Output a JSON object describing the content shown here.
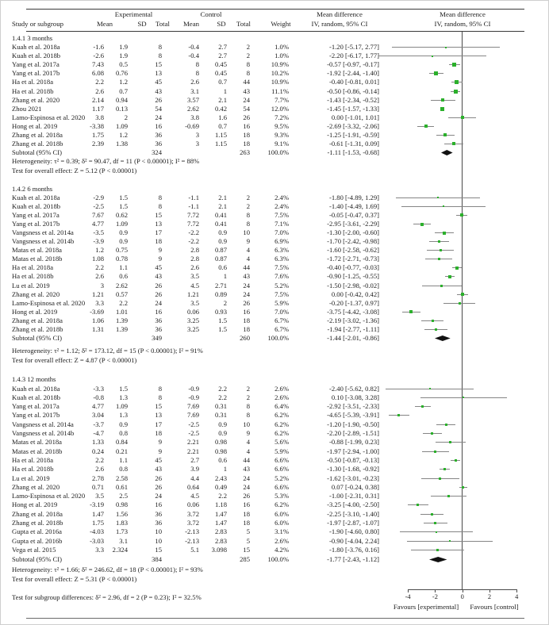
{
  "header": {
    "study_col": "Study or subgroup",
    "group_experimental": "Experimental",
    "group_control": "Control",
    "mean": "Mean",
    "sd": "SD",
    "total": "Total",
    "weight": "Weight",
    "md_col_line1": "Mean difference",
    "md_col_line2": "IV, random, 95% CI",
    "plot_col_line1": "Mean difference",
    "plot_col_line2": "IV, random, 95% CI"
  },
  "footer": {
    "subgroup_diff": "Test for subgroup differences: δ² = 2.96, df = 2 (P = 0.23); I² = 32.5%",
    "favours_left": "Favours [experimental]",
    "favours_right": "Favours [control]"
  },
  "colors": {
    "marker_green": "#2bb02b",
    "ci_line_gray": "#858585",
    "diamond_black": "#111111",
    "rule_dark": "#3a3a3a"
  },
  "chart_data": {
    "type": "forest",
    "effect_measure": "Mean difference, IV, random, 95% CI",
    "xlim": [
      -4,
      4
    ],
    "x_ticks": [
      -4,
      -2,
      0,
      2,
      4
    ],
    "favours": [
      "Favours [experimental]",
      "Favours [control]"
    ],
    "sections": [
      {
        "label": "1.4.1 3 months",
        "studies": [
          {
            "name": "Kuah et al. 2018a",
            "em": "-1.6",
            "esd": "1.9",
            "et": "8",
            "cm": "-0.4",
            "csd": "2.7",
            "ct": "2",
            "w": "1.0%",
            "md": -1.2,
            "lo": -5.17,
            "hi": 2.77
          },
          {
            "name": "Kuah et al. 2018b",
            "em": "-2.6",
            "esd": "1.9",
            "et": "8",
            "cm": "-0.4",
            "csd": "2.7",
            "ct": "2",
            "w": "1.0%",
            "md": -2.2,
            "lo": -6.17,
            "hi": 1.77
          },
          {
            "name": "Yang et al. 2017a",
            "em": "7.43",
            "esd": "0.5",
            "et": "15",
            "cm": "8",
            "csd": "0.45",
            "ct": "8",
            "w": "10.9%",
            "md": -0.57,
            "lo": -0.97,
            "hi": -0.17
          },
          {
            "name": "Yang et al. 2017b",
            "em": "6.08",
            "esd": "0.76",
            "et": "13",
            "cm": "8",
            "csd": "0.45",
            "ct": "8",
            "w": "10.2%",
            "md": -1.92,
            "lo": -2.44,
            "hi": -1.4
          },
          {
            "name": "Ha et al. 2018a",
            "em": "2.2",
            "esd": "1.2",
            "et": "45",
            "cm": "2.6",
            "csd": "0.7",
            "ct": "44",
            "w": "10.9%",
            "md": -0.4,
            "lo": -0.81,
            "hi": 0.01
          },
          {
            "name": "Ha et al. 2018b",
            "em": "2.6",
            "esd": "0.7",
            "et": "43",
            "cm": "3.1",
            "csd": "1",
            "ct": "43",
            "w": "11.1%",
            "md": -0.5,
            "lo": -0.86,
            "hi": -0.14
          },
          {
            "name": "Zhang et al. 2020",
            "em": "2.14",
            "esd": "0.94",
            "et": "26",
            "cm": "3.57",
            "csd": "2.1",
            "ct": "24",
            "w": "7.7%",
            "md": -1.43,
            "lo": -2.34,
            "hi": -0.52
          },
          {
            "name": "Zhou 2021",
            "em": "1.17",
            "esd": "0.13",
            "et": "54",
            "cm": "2.62",
            "csd": "0.42",
            "ct": "54",
            "w": "12.0%",
            "md": -1.45,
            "lo": -1.57,
            "hi": -1.33
          },
          {
            "name": "Lamo-Espinosa et al. 2020",
            "em": "3.8",
            "esd": "2",
            "et": "24",
            "cm": "3.8",
            "csd": "1.6",
            "ct": "26",
            "w": "7.2%",
            "md": 0.0,
            "lo": -1.01,
            "hi": 1.01
          },
          {
            "name": "Hong et al. 2019",
            "em": "-3.38",
            "esd": "1.09",
            "et": "16",
            "cm": "-0.69",
            "csd": "0.7",
            "ct": "16",
            "w": "9.5%",
            "md": -2.69,
            "lo": -3.32,
            "hi": -2.06
          },
          {
            "name": "Zhang et al. 2018a",
            "em": "1.75",
            "esd": "1.2",
            "et": "36",
            "cm": "3",
            "csd": "1.15",
            "ct": "18",
            "w": "9.3%",
            "md": -1.25,
            "lo": -1.91,
            "hi": -0.59
          },
          {
            "name": "Zhang et al. 2018b",
            "em": "2.39",
            "esd": "1.38",
            "et": "36",
            "cm": "3",
            "csd": "1.15",
            "ct": "18",
            "w": "9.1%",
            "md": -0.61,
            "lo": -1.31,
            "hi": 0.09
          }
        ],
        "subtotal": {
          "label": "Subtotal (95% CI)",
          "et": "324",
          "ct": "263",
          "w": "100.0%",
          "md": -1.11,
          "lo": -1.53,
          "hi": -0.68
        },
        "heterogeneity": "Heterogeneity: τ² = 0.39; δ² = 90.47, df = 11 (P < 0.00001); I² = 88%",
        "overall": "Test for overall effect: Z = 5.12 (P < 0.00001)"
      },
      {
        "label": "1.4.2 6 months",
        "studies": [
          {
            "name": "Kuah et al. 2018a",
            "em": "-2.9",
            "esd": "1.5",
            "et": "8",
            "cm": "-1.1",
            "csd": "2.1",
            "ct": "2",
            "w": "2.4%",
            "md": -1.8,
            "lo": -4.89,
            "hi": 1.29
          },
          {
            "name": "Kuah et al. 2018b",
            "em": "-2.5",
            "esd": "1.5",
            "et": "8",
            "cm": "-1.1",
            "csd": "2.1",
            "ct": "2",
            "w": "2.4%",
            "md": -1.4,
            "lo": -4.49,
            "hi": 1.69
          },
          {
            "name": "Yang et al. 2017a",
            "em": "7.67",
            "esd": "0.62",
            "et": "15",
            "cm": "7.72",
            "csd": "0.41",
            "ct": "8",
            "w": "7.5%",
            "md": -0.05,
            "lo": -0.47,
            "hi": 0.37
          },
          {
            "name": "Yang et al. 2017b",
            "em": "4.77",
            "esd": "1.09",
            "et": "13",
            "cm": "7.72",
            "csd": "0.41",
            "ct": "8",
            "w": "7.1%",
            "md": -2.95,
            "lo": -3.61,
            "hi": -2.29
          },
          {
            "name": "Vangsness et al. 2014a",
            "em": "-3.5",
            "esd": "0.9",
            "et": "17",
            "cm": "-2.2",
            "csd": "0.9",
            "ct": "10",
            "w": "7.0%",
            "md": -1.3,
            "lo": -2.0,
            "hi": -0.6
          },
          {
            "name": "Vangsness et al. 2014b",
            "em": "-3.9",
            "esd": "0.9",
            "et": "18",
            "cm": "-2.2",
            "csd": "0.9",
            "ct": "9",
            "w": "6.9%",
            "md": -1.7,
            "lo": -2.42,
            "hi": -0.98
          },
          {
            "name": "Matas et al. 2018a",
            "em": "1.2",
            "esd": "0.75",
            "et": "9",
            "cm": "2.8",
            "csd": "0.87",
            "ct": "4",
            "w": "6.3%",
            "md": -1.6,
            "lo": -2.58,
            "hi": -0.62
          },
          {
            "name": "Matas et al. 2018b",
            "em": "1.08",
            "esd": "0.78",
            "et": "9",
            "cm": "2.8",
            "csd": "0.87",
            "ct": "4",
            "w": "6.3%",
            "md": -1.72,
            "lo": -2.71,
            "hi": -0.73
          },
          {
            "name": "Ha et al. 2018a",
            "em": "2.2",
            "esd": "1.1",
            "et": "45",
            "cm": "2.6",
            "csd": "0.6",
            "ct": "44",
            "w": "7.5%",
            "md": -0.4,
            "lo": -0.77,
            "hi": -0.03
          },
          {
            "name": "Ha et al. 2018b",
            "em": "2.6",
            "esd": "0.6",
            "et": "43",
            "cm": "3.5",
            "csd": "1",
            "ct": "43",
            "w": "7.6%",
            "md": -0.9,
            "lo": -1.25,
            "hi": -0.55
          },
          {
            "name": "Lu et al. 2019",
            "em": "3",
            "esd": "2.62",
            "et": "26",
            "cm": "4.5",
            "csd": "2.71",
            "ct": "24",
            "w": "5.2%",
            "md": -1.5,
            "lo": -2.98,
            "hi": -0.02
          },
          {
            "name": "Zhang et al. 2020",
            "em": "1.21",
            "esd": "0.57",
            "et": "26",
            "cm": "1.21",
            "csd": "0.89",
            "ct": "24",
            "w": "7.5%",
            "md": 0.0,
            "lo": -0.42,
            "hi": 0.42
          },
          {
            "name": "Lamo-Espinosa et al. 2020",
            "em": "3.3",
            "esd": "2.2",
            "et": "24",
            "cm": "3.5",
            "csd": "2",
            "ct": "26",
            "w": "5.9%",
            "md": -0.2,
            "lo": -1.37,
            "hi": 0.97
          },
          {
            "name": "Hong et al. 2019",
            "em": "-3.69",
            "esd": "1.01",
            "et": "16",
            "cm": "0.06",
            "csd": "0.93",
            "ct": "16",
            "w": "7.0%",
            "md": -3.75,
            "lo": -4.42,
            "hi": -3.08
          },
          {
            "name": "Zhang et al. 2018a",
            "em": "1.06",
            "esd": "1.39",
            "et": "36",
            "cm": "3.25",
            "csd": "1.5",
            "ct": "18",
            "w": "6.7%",
            "md": -2.19,
            "lo": -3.02,
            "hi": -1.36
          },
          {
            "name": "Zhang et al. 2018b",
            "em": "1.31",
            "esd": "1.39",
            "et": "36",
            "cm": "3.25",
            "csd": "1.5",
            "ct": "18",
            "w": "6.7%",
            "md": -1.94,
            "lo": -2.77,
            "hi": -1.11
          }
        ],
        "subtotal": {
          "label": "Subtotal (95% CI)",
          "et": "349",
          "ct": "260",
          "w": "100.0%",
          "md": -1.44,
          "lo": -2.01,
          "hi": -0.86
        },
        "heterogeneity": "Heterogeneity: τ² = 1.12; δ² = 173.12, df = 15 (P < 0.00001); I² = 91%",
        "overall": "Test for overall effect: Z = 4.87 (P < 0.00001)"
      },
      {
        "label": "1.4.3 12 months",
        "studies": [
          {
            "name": "Kuah et al. 2018a",
            "em": "-3.3",
            "esd": "1.5",
            "et": "8",
            "cm": "-0.9",
            "csd": "2.2",
            "ct": "2",
            "w": "2.6%",
            "md": -2.4,
            "lo": -5.62,
            "hi": 0.82
          },
          {
            "name": "Kuah et al. 2018b",
            "em": "-0.8",
            "esd": "1.3",
            "et": "8",
            "cm": "-0.9",
            "csd": "2.2",
            "ct": "2",
            "w": "2.6%",
            "md": 0.1,
            "lo": -3.08,
            "hi": 3.28
          },
          {
            "name": "Yang et al. 2017a",
            "em": "4.77",
            "esd": "1.09",
            "et": "15",
            "cm": "7.69",
            "csd": "0.31",
            "ct": "8",
            "w": "6.4%",
            "md": -2.92,
            "lo": -3.51,
            "hi": -2.33
          },
          {
            "name": "Yang et al. 2017b",
            "em": "3.04",
            "esd": "1.3",
            "et": "13",
            "cm": "7.69",
            "csd": "0.31",
            "ct": "8",
            "w": "6.2%",
            "md": -4.65,
            "lo": -5.39,
            "hi": -3.91
          },
          {
            "name": "Vangsness et al. 2014a",
            "em": "-3.7",
            "esd": "0.9",
            "et": "17",
            "cm": "-2.5",
            "csd": "0.9",
            "ct": "10",
            "w": "6.2%",
            "md": -1.2,
            "lo": -1.9,
            "hi": -0.5
          },
          {
            "name": "Vangsness et al. 2014b",
            "em": "-4.7",
            "esd": "0.8",
            "et": "18",
            "cm": "-2.5",
            "csd": "0.9",
            "ct": "9",
            "w": "6.2%",
            "md": -2.2,
            "lo": -2.89,
            "hi": -1.51
          },
          {
            "name": "Matas et al. 2018a",
            "em": "1.33",
            "esd": "0.84",
            "et": "9",
            "cm": "2.21",
            "csd": "0.98",
            "ct": "4",
            "w": "5.6%",
            "md": -0.88,
            "lo": -1.99,
            "hi": 0.23
          },
          {
            "name": "Matas et al. 2018b",
            "em": "0.24",
            "esd": "0.21",
            "et": "9",
            "cm": "2.21",
            "csd": "0.98",
            "ct": "4",
            "w": "5.9%",
            "md": -1.97,
            "lo": -2.94,
            "hi": -1.0
          },
          {
            "name": "Ha et al. 2018a",
            "em": "2.2",
            "esd": "1.1",
            "et": "45",
            "cm": "2.7",
            "csd": "0.6",
            "ct": "44",
            "w": "6.6%",
            "md": -0.5,
            "lo": -0.87,
            "hi": -0.13
          },
          {
            "name": "Ha et al. 2018b",
            "em": "2.6",
            "esd": "0.8",
            "et": "43",
            "cm": "3.9",
            "csd": "1",
            "ct": "43",
            "w": "6.6%",
            "md": -1.3,
            "lo": -1.68,
            "hi": -0.92
          },
          {
            "name": "Lu et al. 2019",
            "em": "2.78",
            "esd": "2.58",
            "et": "26",
            "cm": "4.4",
            "csd": "2.43",
            "ct": "24",
            "w": "5.2%",
            "md": -1.62,
            "lo": -3.01,
            "hi": -0.23
          },
          {
            "name": "Zhang et al. 2020",
            "em": "0.71",
            "esd": "0.61",
            "et": "26",
            "cm": "0.64",
            "csd": "0.49",
            "ct": "24",
            "w": "6.6%",
            "md": 0.07,
            "lo": -0.24,
            "hi": 0.38
          },
          {
            "name": "Lamo-Espinosa et al. 2020",
            "em": "3.5",
            "esd": "2.5",
            "et": "24",
            "cm": "4.5",
            "csd": "2.2",
            "ct": "26",
            "w": "5.3%",
            "md": -1.0,
            "lo": -2.31,
            "hi": 0.31
          },
          {
            "name": "Hong et al. 2019",
            "em": "-3.19",
            "esd": "0.98",
            "et": "16",
            "cm": "0.06",
            "csd": "1.18",
            "ct": "16",
            "w": "6.2%",
            "md": -3.25,
            "lo": -4.0,
            "hi": -2.5
          },
          {
            "name": "Zhang et al. 2018a",
            "em": "1.47",
            "esd": "1.56",
            "et": "36",
            "cm": "3.72",
            "csd": "1.47",
            "ct": "18",
            "w": "6.0%",
            "md": -2.25,
            "lo": -3.1,
            "hi": -1.4
          },
          {
            "name": "Zhang et al. 2018b",
            "em": "1.75",
            "esd": "1.83",
            "et": "36",
            "cm": "3.72",
            "csd": "1.47",
            "ct": "18",
            "w": "6.0%",
            "md": -1.97,
            "lo": -2.87,
            "hi": -1.07
          },
          {
            "name": "Gupta et al. 2016a",
            "em": "-4.03",
            "esd": "1.73",
            "et": "10",
            "cm": "-2.13",
            "csd": "2.83",
            "ct": "5",
            "w": "3.1%",
            "md": -1.9,
            "lo": -4.6,
            "hi": 0.8
          },
          {
            "name": "Gupta et al. 2016b",
            "em": "-3.03",
            "esd": "3.1",
            "et": "10",
            "cm": "-2.13",
            "csd": "2.83",
            "ct": "5",
            "w": "2.6%",
            "md": -0.9,
            "lo": -4.04,
            "hi": 2.24
          },
          {
            "name": "Vega et al. 2015",
            "em": "3.3",
            "esd": "2.324",
            "et": "15",
            "cm": "5.1",
            "csd": "3.098",
            "ct": "15",
            "w": "4.2%",
            "md": -1.8,
            "lo": -3.76,
            "hi": 0.16
          }
        ],
        "subtotal": {
          "label": "Subtotal (95% CI)",
          "et": "384",
          "ct": "285",
          "w": "100.0%",
          "md": -1.77,
          "lo": -2.43,
          "hi": -1.12
        },
        "heterogeneity": "Heterogeneity: τ² = 1.66; δ² = 246.62, df = 18 (P < 0.00001); I² = 93%",
        "overall": "Test for overall effect: Z = 5.31 (P < 0.00001)"
      }
    ]
  }
}
